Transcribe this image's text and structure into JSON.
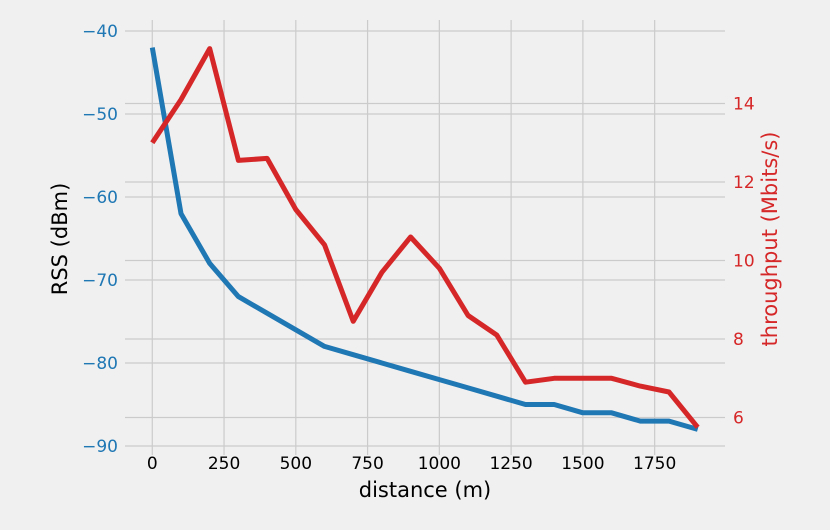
{
  "chart_data": {
    "type": "line",
    "xlabel": "distance (m)",
    "ylabel_left": "RSS (dBm)",
    "ylabel_right": "throughput (Mbits/s)",
    "x_ticks": [
      0,
      250,
      500,
      750,
      1000,
      1250,
      1500,
      1750
    ],
    "x_tick_labels": [
      "0",
      "250",
      "500",
      "750",
      "1000",
      "1250",
      "1500",
      "1750"
    ],
    "y_left_ticks": [
      -40,
      -50,
      -60,
      -70,
      -80,
      -90
    ],
    "y_left_tick_labels": [
      "−40",
      "−50",
      "−60",
      "−70",
      "−80",
      "−90"
    ],
    "y_right_ticks": [
      14,
      12,
      10,
      8,
      6
    ],
    "y_right_tick_labels": [
      "14",
      "12",
      "10",
      "8",
      "6"
    ],
    "xlim": [
      -95,
      1995
    ],
    "ylim_left": [
      -90,
      -40
    ],
    "ylim_right": [
      5.3,
      15.8
    ],
    "grid": true,
    "colors": {
      "rss": "#1f77b4",
      "throughput": "#d62728",
      "background": "#f0f0f0",
      "grid": "#cbcbcb"
    },
    "series": [
      {
        "axis": "left",
        "x": [
          0,
          100,
          200,
          300,
          400,
          500,
          600,
          700,
          800,
          900,
          1000,
          1100,
          1200,
          1300,
          1400,
          1500,
          1600,
          1700,
          1800,
          1900
        ],
        "values": [
          -42,
          -62,
          -68,
          -72,
          -74,
          -76,
          -78,
          -79,
          -80,
          -81,
          -82,
          -83,
          -84,
          -85,
          -85,
          -86,
          -86,
          -87,
          -87,
          -88
        ]
      },
      {
        "axis": "right",
        "x": [
          0,
          100,
          200,
          300,
          400,
          500,
          600,
          700,
          800,
          900,
          1000,
          1100,
          1200,
          1300,
          1400,
          1500,
          1600,
          1700,
          1800,
          1900
        ],
        "values": [
          13.0,
          14.1,
          15.4,
          12.55,
          12.6,
          11.3,
          10.4,
          8.45,
          9.7,
          10.6,
          9.8,
          8.6,
          8.1,
          6.9,
          7.0,
          7.0,
          7.0,
          6.8,
          6.65,
          5.75
        ]
      }
    ]
  }
}
